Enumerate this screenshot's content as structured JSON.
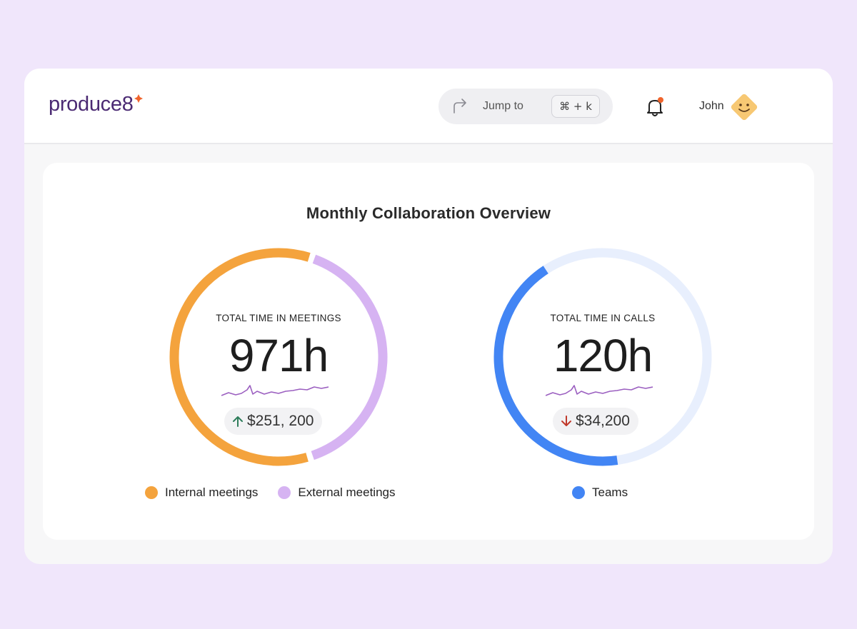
{
  "header": {
    "logo_text": "produce8",
    "jump": {
      "label": "Jump to",
      "shortcut": "⌘ + k"
    },
    "user": {
      "name": "John"
    }
  },
  "card": {
    "title": "Monthly Collaboration Overview"
  },
  "meetings": {
    "label": "TOTAL TIME IN MEETINGS",
    "value": "971h",
    "cost": "$251, 200",
    "trend": "up",
    "segments": [
      {
        "name": "Internal meetings",
        "fraction": 0.6,
        "color": "#f4a33d"
      },
      {
        "name": "External meetings",
        "fraction": 0.4,
        "color": "#d6b3f2"
      }
    ]
  },
  "calls": {
    "label": "TOTAL TIME IN CALLS",
    "value": "120h",
    "cost": "$34,200",
    "trend": "down",
    "segments": [
      {
        "name": "Teams",
        "fraction": 0.43,
        "color": "#4285f4"
      }
    ],
    "track_color": "#e8effd"
  },
  "colors": {
    "trend_up": "#2e7d5b",
    "trend_down": "#c0392b",
    "sparkline": "#9b5fc0",
    "logo": "#4b2a73",
    "notification_dot": "#f0642c",
    "doodle": "#f4c15a"
  },
  "icons": [
    "redirect-arrow-icon",
    "bell-icon",
    "smiley-avatar-icon",
    "arrow-up-icon",
    "arrow-down-icon"
  ]
}
